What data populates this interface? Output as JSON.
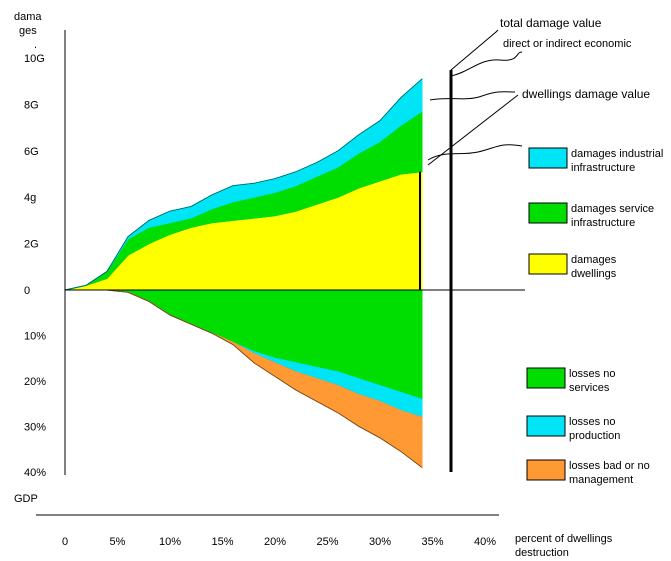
{
  "chart_data": {
    "type": "area",
    "ylabel_top": [
      "dama",
      "ges",
      "."
    ],
    "ylabel_bottom": "GDP",
    "xlabel": [
      "percent of dwellings",
      "destruction"
    ],
    "x_ticks": [
      "0",
      "5%",
      "10%",
      "15%",
      "20%",
      "25%",
      "30%",
      "35%",
      "40%"
    ],
    "x_tick_values": [
      0,
      5,
      10,
      15,
      20,
      25,
      30,
      35,
      40
    ],
    "y_ticks_top": [
      "10G",
      "8G",
      "6G",
      "4g",
      "2G",
      "0"
    ],
    "y_tick_values_top": [
      10,
      8,
      6,
      4,
      2,
      0
    ],
    "y_ticks_bottom": [
      "10%",
      "20%",
      "30%",
      "40%"
    ],
    "y_tick_values_bottom": [
      10,
      20,
      30,
      40
    ],
    "xlim": [
      0,
      40
    ],
    "ylim_top": [
      0,
      10
    ],
    "ylim_bottom": [
      0,
      40
    ],
    "x": [
      0,
      2,
      4,
      6,
      8,
      10,
      12,
      14,
      16,
      18,
      20,
      22,
      24,
      26,
      28,
      30,
      32,
      34
    ],
    "damages": [
      {
        "name": "damages dwellings",
        "color": "#ffff00",
        "values": [
          0,
          0.2,
          0.5,
          1.5,
          2.0,
          2.4,
          2.7,
          2.9,
          3.0,
          3.1,
          3.2,
          3.4,
          3.7,
          4.0,
          4.4,
          4.7,
          5.0,
          5.1
        ]
      },
      {
        "name": "damages service infrastructure",
        "color": "#00dd00",
        "values": [
          0,
          0,
          0.3,
          0.7,
          0.7,
          0.5,
          0.4,
          0.6,
          0.8,
          0.9,
          1.0,
          1.1,
          1.2,
          1.3,
          1.5,
          1.7,
          2.1,
          2.6
        ]
      },
      {
        "name": "damages industrial infrastructure",
        "color": "#00e5f5",
        "values": [
          0,
          0,
          0,
          0.1,
          0.3,
          0.5,
          0.5,
          0.6,
          0.7,
          0.6,
          0.6,
          0.6,
          0.6,
          0.7,
          0.8,
          0.9,
          1.2,
          1.4
        ]
      }
    ],
    "losses": [
      {
        "name": "losses no services",
        "color": "#00dd00",
        "values": [
          0,
          0,
          0,
          0.5,
          2.5,
          5.5,
          7.5,
          9.5,
          11.5,
          13.5,
          15,
          16,
          17,
          18,
          19.5,
          21,
          22.5,
          24
        ]
      },
      {
        "name": "losses no production",
        "color": "#00e5f5",
        "values": [
          0,
          0,
          0,
          0,
          0,
          0,
          0,
          0,
          0,
          0.5,
          1,
          2,
          2.5,
          3,
          3.5,
          3.5,
          4,
          4
        ]
      },
      {
        "name": "losses bad or no management",
        "color": "#ff9933",
        "values": [
          0,
          0,
          0,
          0,
          0,
          0,
          0,
          0,
          0.5,
          2,
          3,
          4,
          5,
          6,
          7,
          8,
          9,
          11
        ]
      }
    ],
    "annotations": [
      "total damage value",
      "direct or indirect economic",
      "dwellings damage value"
    ],
    "legend": [
      {
        "label": [
          "damages industrial",
          "infrastructure"
        ],
        "color": "#00e5f5"
      },
      {
        "label": [
          "damages service",
          "infrastructure"
        ],
        "color": "#00dd00"
      },
      {
        "label": [
          "damages",
          "dwellings"
        ],
        "color": "#ffff00"
      },
      {
        "label": [
          "losses no",
          "services"
        ],
        "color": "#00dd00"
      },
      {
        "label": [
          "losses no",
          "production"
        ],
        "color": "#00e5f5"
      },
      {
        "label": [
          "losses bad or no",
          "management"
        ],
        "color": "#ff9933"
      }
    ],
    "grid": false
  }
}
